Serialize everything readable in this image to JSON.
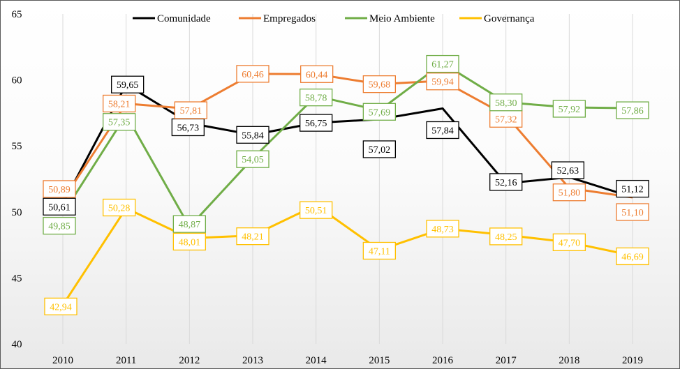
{
  "chart_data": {
    "type": "line",
    "title": "",
    "xlabel": "",
    "ylabel": "",
    "categories": [
      "2010",
      "2011",
      "2012",
      "2013",
      "2014",
      "2015",
      "2016",
      "2017",
      "2018",
      "2019"
    ],
    "ylim": [
      40,
      65
    ],
    "yticks": [
      40,
      45,
      50,
      55,
      60,
      65
    ],
    "grid": "vertical",
    "legend_position": "top",
    "data_labels": true,
    "series": [
      {
        "name": "Comunidade",
        "color": "#000000",
        "values": [
          50.61,
          59.65,
          56.73,
          55.84,
          56.75,
          57.02,
          57.84,
          52.16,
          52.63,
          51.12
        ],
        "labels": [
          "50,61",
          "59,65",
          "56,73",
          "55,84",
          "56,75",
          "57,02",
          "57,84",
          "52,16",
          "52,63",
          "51,12"
        ]
      },
      {
        "name": "Empregados",
        "color": "#ED7D31",
        "values": [
          50.89,
          58.21,
          57.81,
          60.46,
          60.44,
          59.68,
          59.94,
          57.32,
          51.8,
          51.1
        ],
        "labels": [
          "50,89",
          "58,21",
          "57,81",
          "60,46",
          "60,44",
          "59,68",
          "59,94",
          "57,32",
          "51,80",
          "51,10"
        ]
      },
      {
        "name": "Meio Ambiente",
        "color": "#70AD47",
        "values": [
          49.85,
          57.35,
          48.87,
          54.05,
          58.78,
          57.69,
          61.27,
          58.3,
          57.92,
          57.86
        ],
        "labels": [
          "49,85",
          "57,35",
          "48,87",
          "54,05",
          "58,78",
          "57,69",
          "61,27",
          "58,30",
          "57,92",
          "57,86"
        ]
      },
      {
        "name": "Governança",
        "color": "#FFC000",
        "values": [
          42.94,
          50.28,
          48.01,
          48.21,
          50.51,
          47.11,
          48.73,
          48.25,
          47.7,
          46.69
        ],
        "labels": [
          "42,94",
          "50,28",
          "48,01",
          "48,21",
          "50,51",
          "47,11",
          "48,73",
          "48,25",
          "47,70",
          "46,69"
        ]
      }
    ]
  }
}
